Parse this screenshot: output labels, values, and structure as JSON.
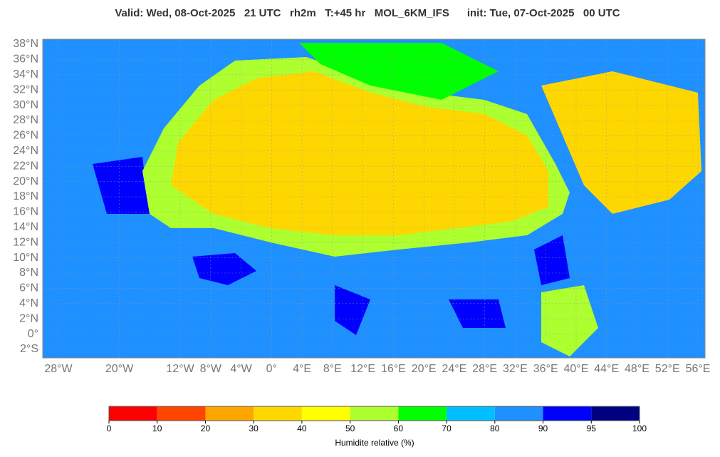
{
  "header": {
    "title": "Valid: Wed, 08-Oct-2025   21 UTC   rh2m   T:+45 hr   MOL_6KM_IFS      init: Tue, 07-Oct-2025   00 UTC"
  },
  "map": {
    "lat_ticks": [
      {
        "value": 38,
        "label": "38°N"
      },
      {
        "value": 36,
        "label": "36°N"
      },
      {
        "value": 34,
        "label": "34°N"
      },
      {
        "value": 32,
        "label": "32°N"
      },
      {
        "value": 30,
        "label": "30°N"
      },
      {
        "value": 28,
        "label": "28°N"
      },
      {
        "value": 26,
        "label": "26°N"
      },
      {
        "value": 24,
        "label": "24°N"
      },
      {
        "value": 22,
        "label": "22°N"
      },
      {
        "value": 20,
        "label": "20°N"
      },
      {
        "value": 18,
        "label": "18°N"
      },
      {
        "value": 16,
        "label": "16°N"
      },
      {
        "value": 14,
        "label": "14°N"
      },
      {
        "value": 12,
        "label": "12°N"
      },
      {
        "value": 10,
        "label": "10°N"
      },
      {
        "value": 8,
        "label": "8°N"
      },
      {
        "value": 6,
        "label": "6°N"
      },
      {
        "value": 4,
        "label": "4°N"
      },
      {
        "value": 2,
        "label": "2°N"
      },
      {
        "value": 0,
        "label": "0°"
      },
      {
        "value": -2,
        "label": "2°S"
      }
    ],
    "lon_ticks": [
      {
        "value": -28,
        "label": "28°W"
      },
      {
        "value": -20,
        "label": "20°W"
      },
      {
        "value": -12,
        "label": "12°W"
      },
      {
        "value": -8,
        "label": "8°W"
      },
      {
        "value": -4,
        "label": "4°W"
      },
      {
        "value": 0,
        "label": "0°"
      },
      {
        "value": 4,
        "label": "4°E"
      },
      {
        "value": 8,
        "label": "8°E"
      },
      {
        "value": 12,
        "label": "12°E"
      },
      {
        "value": 16,
        "label": "16°E"
      },
      {
        "value": 20,
        "label": "20°E"
      },
      {
        "value": 24,
        "label": "24°E"
      },
      {
        "value": 28,
        "label": "28°E"
      },
      {
        "value": 32,
        "label": "32°E"
      },
      {
        "value": 36,
        "label": "36°E"
      },
      {
        "value": 40,
        "label": "40°E"
      },
      {
        "value": 44,
        "label": "44°E"
      },
      {
        "value": 48,
        "label": "48°E"
      },
      {
        "value": 52,
        "label": "52°E"
      },
      {
        "value": 56,
        "label": "56°E"
      }
    ]
  },
  "colorbar": {
    "label": "Humidite relative (%)",
    "ticks": [
      0,
      10,
      20,
      30,
      40,
      50,
      60,
      70,
      80,
      90,
      95,
      100
    ],
    "colors": [
      "#ff0000",
      "#ff4500",
      "#ffa500",
      "#ffd700",
      "#ffff00",
      "#adff2f",
      "#00ff00",
      "#00bfff",
      "#1e90ff",
      "#0000ff",
      "#000080"
    ]
  }
}
